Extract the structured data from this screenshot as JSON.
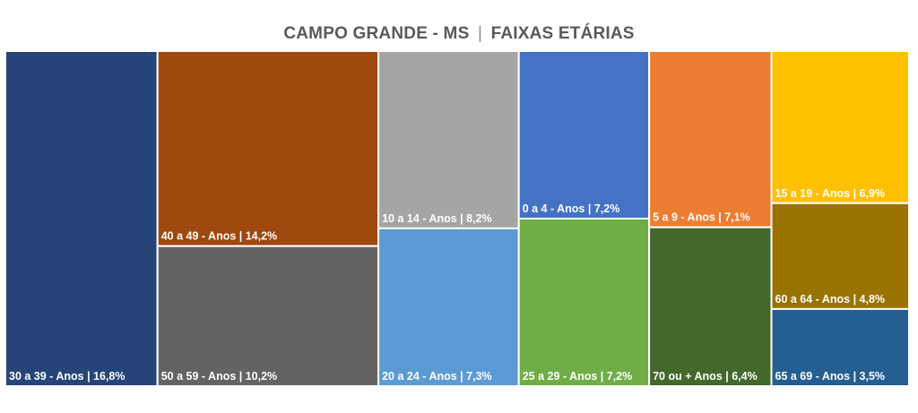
{
  "chart_data": {
    "type": "treemap",
    "title": "CAMPO GRANDE - MS",
    "subtitle": "FAIXAS ETÁRIAS",
    "title_separator": "|",
    "label_separator": " | ",
    "items": [
      {
        "label": "30 a 39 - Anos",
        "display": "16,8%",
        "value": 16.8,
        "color": "#264478"
      },
      {
        "label": "40 a 49 - Anos",
        "display": "14,2%",
        "value": 14.2,
        "color": "#9E480E"
      },
      {
        "label": "50 a 59 - Anos",
        "display": "10,2%",
        "value": 10.2,
        "color": "#636363"
      },
      {
        "label": "10 a 14 - Anos",
        "display": "8,2%",
        "value": 8.2,
        "color": "#A5A5A5"
      },
      {
        "label": "20 a 24 - Anos",
        "display": "7,3%",
        "value": 7.3,
        "color": "#5B9BD5"
      },
      {
        "label": "0 a 4 - Anos",
        "display": "7,2%",
        "value": 7.2,
        "color": "#4472C4"
      },
      {
        "label": "25 a 29 - Anos",
        "display": "7,2%",
        "value": 7.2,
        "color": "#70AD47"
      },
      {
        "label": "5 a 9 - Anos",
        "display": "7,1%",
        "value": 7.1,
        "color": "#ED7D31"
      },
      {
        "label": "15 a 19 - Anos",
        "display": "6,9%",
        "value": 6.9,
        "color": "#FFC000"
      },
      {
        "label": "70 ou + Anos",
        "display": "6,4%",
        "value": 6.4,
        "color": "#43682B"
      },
      {
        "label": "60 a 64 - Anos",
        "display": "4,8%",
        "value": 4.8,
        "color": "#997300"
      },
      {
        "label": "65 a 69 - Anos",
        "display": "3,5%",
        "value": 3.5,
        "color": "#255E91"
      }
    ]
  }
}
